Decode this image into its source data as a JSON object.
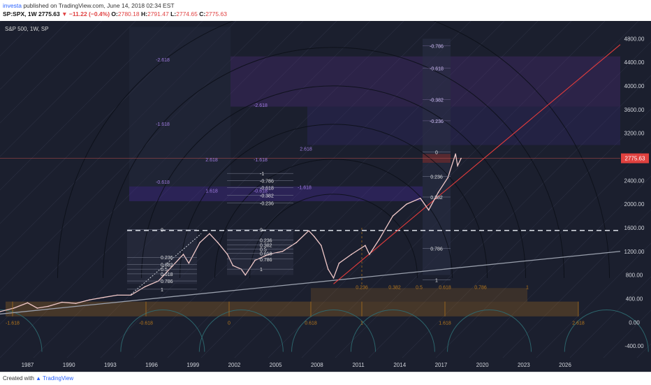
{
  "header": {
    "author": "investa",
    "published": "published on TradingView.com, June 14, 2018 02:34 EST",
    "symbol": "SP:SPX, 1W",
    "last": "2775.63",
    "change": "▼ −11.22 (−0.4%)",
    "open_label": "O:",
    "open": "2780.18",
    "high_label": "H:",
    "high": "2791.47",
    "low_label": "L:",
    "low": "2774.65",
    "close_label": "C:",
    "close": "2775.63"
  },
  "footer": {
    "created_with": "Created with",
    "brand": "TradingView"
  },
  "colors": {
    "background": "#1b1f2e",
    "candles": "#f0c8c8",
    "trend_red": "#e33c3c",
    "trend_gray": "#9aa0ad",
    "fib_purple": "#5a2d8c",
    "time_fib_orange": "#b8781c",
    "cycle_teal": "#2f6b72",
    "price_tag": "#e0413f"
  },
  "chart_data": {
    "type": "line",
    "title": "S&P 500, 1W, SP",
    "xlabel": "",
    "ylabel": "",
    "xlim": [
      1985.0,
      2030.0
    ],
    "ylim": [
      -600,
      5100
    ],
    "x_ticks": [
      "1987",
      "1990",
      "1993",
      "1996",
      "1999",
      "2002",
      "2005",
      "2008",
      "2011",
      "2014",
      "2017",
      "2020",
      "2023",
      "2026"
    ],
    "y_ticks": [
      "4800.00",
      "4400.00",
      "4000.00",
      "3600.00",
      "3200.00",
      "2800.00",
      "2400.00",
      "2000.00",
      "1600.00",
      "1200.00",
      "800.00",
      "400.00",
      "0.00",
      "-400.00"
    ],
    "last_price_label": "2775.63",
    "series": [
      {
        "x": [
          1985.0,
          1986.0,
          1987.0,
          1987.7,
          1988.5,
          1989.5,
          1990.5,
          1991.5,
          1992.5,
          1993.5,
          1994.5,
          1995.5,
          1996.5,
          1997.5,
          1998.3,
          1998.7,
          1999.5,
          2000.2,
          2000.8,
          2001.5,
          2001.9,
          2002.5,
          2002.8,
          2003.5,
          2004.5,
          2005.5,
          2006.5,
          2007.4,
          2007.8,
          2008.3,
          2008.8,
          2009.2,
          2009.6,
          2010.5,
          2011.5,
          2011.8,
          2012.5,
          2013.5,
          2014.5,
          2015.5,
          2016.1,
          2016.8,
          2017.5,
          2018.05,
          2018.2,
          2018.45
        ],
        "values": [
          180,
          240,
          330,
          240,
          270,
          340,
          320,
          380,
          420,
          460,
          460,
          600,
          700,
          950,
          1150,
          1000,
          1350,
          1500,
          1350,
          1150,
          960,
          900,
          800,
          1050,
          1150,
          1200,
          1350,
          1550,
          1450,
          1300,
          900,
          750,
          1000,
          1150,
          1300,
          1150,
          1400,
          1800,
          2000,
          2100,
          1900,
          2200,
          2450,
          2850,
          2650,
          2775
        ]
      }
    ],
    "annotations": {
      "fib_left_levels": [
        "0",
        "0.236",
        "0.382",
        "0.5",
        "0.618",
        "0.786",
        "1"
      ],
      "fib_left_labels": [
        "0",
        "0.236",
        "0.382",
        "0.5",
        "0.618",
        "0.786",
        "1"
      ],
      "fib_mid_labels": [
        "0",
        "0.236",
        "0.382",
        "0.5",
        "0.618",
        "0.786",
        "1"
      ],
      "fib_mid_neg_labels": [
        "-1",
        "-0.786",
        "-0.618",
        "-0.382",
        "-0.236"
      ],
      "fib_right_labels": [
        "0",
        "0.236",
        "0.382",
        "0.786",
        "1"
      ],
      "fib_right_neg_labels": [
        "-0.786",
        "-0.618",
        "-0.382",
        "-0.236"
      ],
      "extension_labels": [
        "-2.618",
        "-2.618",
        "-1.618",
        "2.618",
        "-1.618",
        "2.618",
        "-0.618",
        "1.618",
        "-0.618",
        "-1.618"
      ],
      "time_fib_labels": [
        "-1.618",
        "-0.618",
        "0",
        "0.618",
        "1",
        "1.618",
        "2.618"
      ],
      "time_fib_upper_labels": [
        "0.236",
        "0.382",
        "0.5",
        "0.618",
        "0.786",
        "1"
      ]
    }
  }
}
